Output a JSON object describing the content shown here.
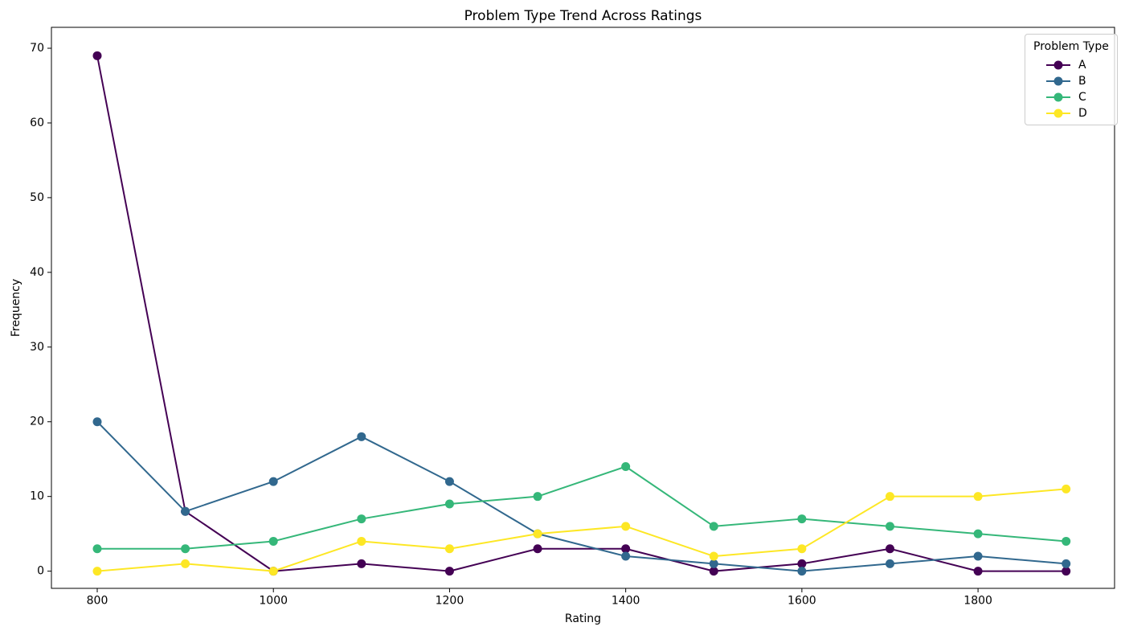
{
  "figure": {
    "title": "Problem Type Trend Across Ratings"
  },
  "chart_data": {
    "type": "line",
    "title": "Problem Type Trend Across Ratings",
    "xlabel": "Rating",
    "ylabel": "Frequency",
    "x": [
      800,
      900,
      1000,
      1100,
      1200,
      1300,
      1400,
      1500,
      1600,
      1700,
      1800,
      1900
    ],
    "series": [
      {
        "name": "A",
        "color": "#440154",
        "values": [
          69,
          8,
          0,
          1,
          0,
          3,
          3,
          0,
          1,
          3,
          0,
          0
        ]
      },
      {
        "name": "B",
        "color": "#31688e",
        "values": [
          20,
          8,
          12,
          18,
          12,
          5,
          2,
          1,
          0,
          1,
          2,
          1
        ]
      },
      {
        "name": "C",
        "color": "#35b779",
        "values": [
          3,
          3,
          4,
          7,
          9,
          10,
          14,
          6,
          7,
          6,
          5,
          4
        ]
      },
      {
        "name": "D",
        "color": "#fde725",
        "values": [
          0,
          1,
          0,
          4,
          3,
          5,
          6,
          2,
          3,
          10,
          10,
          11
        ]
      }
    ],
    "x_ticks": [
      800,
      1000,
      1200,
      1400,
      1600,
      1800
    ],
    "y_ticks": [
      0,
      10,
      20,
      30,
      40,
      50,
      60,
      70
    ],
    "xlim": [
      748,
      1955
    ],
    "ylim": [
      -2.3,
      72.8
    ],
    "grid": false,
    "marker": "circle",
    "legend": {
      "title": "Problem Type",
      "position": "upper right",
      "entries": [
        "A",
        "B",
        "C",
        "D"
      ]
    },
    "axis_color": "#000000",
    "background_color": "#ffffff"
  }
}
